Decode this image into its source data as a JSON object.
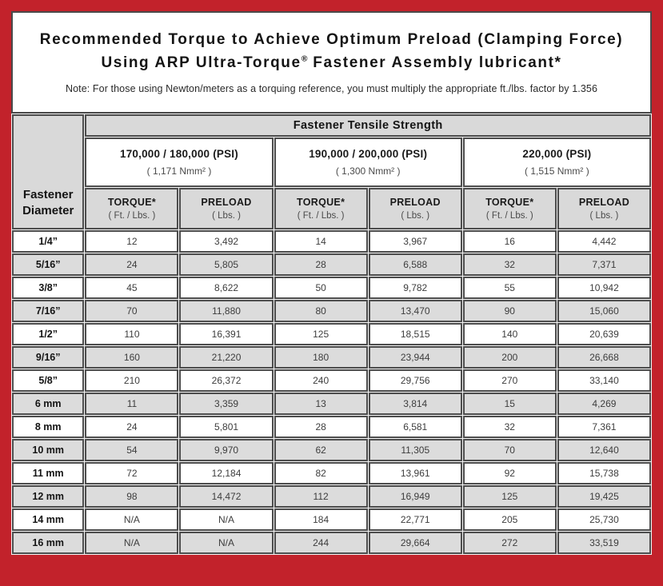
{
  "colors": {
    "frame_red": "#c2222b",
    "header_gray": "#d9d9d9",
    "row_alt_gray": "#dcdcdc",
    "cell_border": "#4d4d4d"
  },
  "header": {
    "title_line1": "Recommended Torque to Achieve Optimum Preload (Clamping Force)",
    "title_line2_pre": "Using ARP Ultra-Torque",
    "title_line2_reg": "®",
    "title_line2_post": " Fastener Assembly lubricant*",
    "note": "Note: For those using Newton/meters as a torquing reference, you must multiply the appropriate ft./lbs. factor by 1.356"
  },
  "table": {
    "corner_header": "Fastener Diameter",
    "tensile_strength_header": "Fastener Tensile Strength",
    "groups": [
      {
        "psi": "170,000 / 180,000 (PSI)",
        "nmm": "( 1,171 Nmm² )"
      },
      {
        "psi": "190,000 / 200,000 (PSI)",
        "nmm": "( 1,300 Nmm² )"
      },
      {
        "psi": "220,000 (PSI)",
        "nmm": "( 1,515 Nmm² )"
      }
    ],
    "col_headers": [
      {
        "label": "TORQUE*",
        "sub": "( Ft. / Lbs. )"
      },
      {
        "label": "PRELOAD",
        "sub": "( Lbs. )"
      },
      {
        "label": "TORQUE*",
        "sub": "( Ft. / Lbs. )"
      },
      {
        "label": "PRELOAD",
        "sub": "( Lbs. )"
      },
      {
        "label": "TORQUE*",
        "sub": "( Ft. / Lbs. )"
      },
      {
        "label": "PRELOAD",
        "sub": "( Lbs. )"
      }
    ],
    "rows": [
      {
        "diameter": "1/4”",
        "values": [
          "12",
          "3,492",
          "14",
          "3,967",
          "16",
          "4,442"
        ]
      },
      {
        "diameter": "5/16”",
        "values": [
          "24",
          "5,805",
          "28",
          "6,588",
          "32",
          "7,371"
        ]
      },
      {
        "diameter": "3/8”",
        "values": [
          "45",
          "8,622",
          "50",
          "9,782",
          "55",
          "10,942"
        ]
      },
      {
        "diameter": "7/16”",
        "values": [
          "70",
          "11,880",
          "80",
          "13,470",
          "90",
          "15,060"
        ]
      },
      {
        "diameter": "1/2”",
        "values": [
          "110",
          "16,391",
          "125",
          "18,515",
          "140",
          "20,639"
        ]
      },
      {
        "diameter": "9/16”",
        "values": [
          "160",
          "21,220",
          "180",
          "23,944",
          "200",
          "26,668"
        ]
      },
      {
        "diameter": "5/8”",
        "values": [
          "210",
          "26,372",
          "240",
          "29,756",
          "270",
          "33,140"
        ]
      },
      {
        "diameter": "6 mm",
        "values": [
          "11",
          "3,359",
          "13",
          "3,814",
          "15",
          "4,269"
        ]
      },
      {
        "diameter": "8 mm",
        "values": [
          "24",
          "5,801",
          "28",
          "6,581",
          "32",
          "7,361"
        ]
      },
      {
        "diameter": "10 mm",
        "values": [
          "54",
          "9,970",
          "62",
          "11,305",
          "70",
          "12,640"
        ]
      },
      {
        "diameter": "11 mm",
        "values": [
          "72",
          "12,184",
          "82",
          "13,961",
          "92",
          "15,738"
        ]
      },
      {
        "diameter": "12 mm",
        "values": [
          "98",
          "14,472",
          "112",
          "16,949",
          "125",
          "19,425"
        ]
      },
      {
        "diameter": "14 mm",
        "values": [
          "N/A",
          "N/A",
          "184",
          "22,771",
          "205",
          "25,730"
        ]
      },
      {
        "diameter": "16 mm",
        "values": [
          "N/A",
          "N/A",
          "244",
          "29,664",
          "272",
          "33,519"
        ]
      }
    ]
  }
}
